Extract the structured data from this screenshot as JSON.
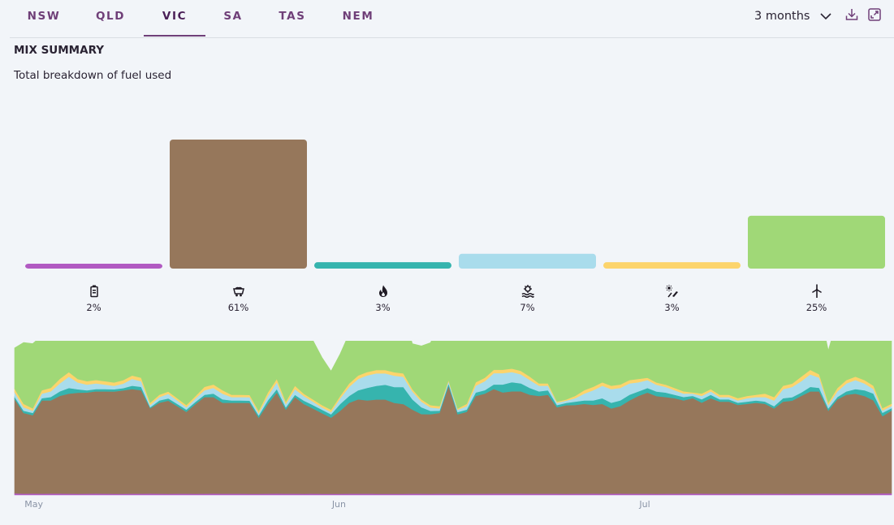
{
  "tabs": [
    {
      "label": "NSW",
      "active": false
    },
    {
      "label": "QLD",
      "active": false
    },
    {
      "label": "VIC",
      "active": true
    },
    {
      "label": "SA",
      "active": false
    },
    {
      "label": "TAS",
      "active": false
    },
    {
      "label": "NEM",
      "active": false
    }
  ],
  "toolbar": {
    "period_label": "3 months",
    "icons": [
      "chevron-down-icon",
      "download-icon",
      "expand-icon"
    ]
  },
  "summary": {
    "title": "MIX SUMMARY",
    "subtitle": "Total breakdown of fuel used"
  },
  "fuels": [
    {
      "key": "battery",
      "icon": "battery-icon",
      "percent_label": "2%",
      "color": "#b15ac2"
    },
    {
      "key": "coal",
      "icon": "coal-cart-icon",
      "percent_label": "61%",
      "color": "#96775b"
    },
    {
      "key": "gas",
      "icon": "flame-icon",
      "percent_label": "3%",
      "color": "#36b4ae"
    },
    {
      "key": "hydro",
      "icon": "hydro-icon",
      "percent_label": "7%",
      "color": "#a9dcec"
    },
    {
      "key": "solar",
      "icon": "solar-icon",
      "percent_label": "3%",
      "color": "#fcd46c"
    },
    {
      "key": "wind",
      "icon": "wind-turbine-icon",
      "percent_label": "25%",
      "color": "#a0d877"
    }
  ],
  "chart_data": [
    {
      "type": "bar",
      "categories": [
        "battery",
        "coal",
        "gas",
        "hydro",
        "solar",
        "wind"
      ],
      "values": [
        2,
        61,
        3,
        7,
        3,
        25
      ],
      "unit": "%",
      "title": "",
      "xlabel": "",
      "ylabel": "",
      "grid": false
    },
    {
      "type": "area",
      "stacked": true,
      "x_ticks": [
        "May",
        "Jun",
        "Jul"
      ],
      "x_tick_index": [
        2,
        36,
        70
      ],
      "grid": false,
      "series": [
        {
          "name": "battery",
          "color": "#b15ac2",
          "values": [
            1.5,
            1.2,
            1.3,
            1.2,
            1.3,
            1.3,
            1.2,
            1.1,
            1.2,
            1.3,
            1.2,
            1.1,
            1.1,
            1.2,
            1.2,
            1.3,
            1.2,
            1.1,
            1.2,
            1.2,
            1.1,
            1.2,
            1.3,
            1.2,
            1.2,
            1.2,
            1.1,
            1.1,
            1.2,
            1.3,
            1.2,
            1.2,
            1.1,
            1.2,
            1.1,
            1.1,
            1.1,
            1.2,
            1.2,
            1.3,
            1.1,
            1.1,
            1.1,
            1.1,
            1.2,
            1.2,
            1.1,
            1.2,
            1.2,
            1.1,
            1.2,
            1.2,
            1.2,
            1.3,
            1.3,
            1.3,
            1.3,
            1.2,
            1.2,
            1.2,
            1.2,
            1.1,
            1.2,
            1.2,
            1.3,
            1.2,
            1.2,
            1.3,
            1.2,
            1.2,
            1.2,
            1.1,
            1.2,
            1.2,
            1.3,
            1.3,
            1.3,
            1.2,
            1.2,
            1.2,
            1.3,
            1.2,
            1.2,
            1.3,
            1.2,
            1.2,
            1.1,
            1.2,
            1.2,
            1.3,
            1.3,
            1.2,
            1.2,
            1.2,
            1.2,
            1.3,
            1.4,
            1.4
          ]
        },
        {
          "name": "coal",
          "color": "#96775b",
          "values": [
            83,
            71,
            69,
            82,
            82,
            86,
            88,
            89,
            89,
            90,
            90,
            90,
            91,
            92,
            91,
            75,
            80,
            82,
            77,
            72,
            79,
            85,
            85,
            80,
            80,
            80,
            80,
            67,
            79,
            89,
            74,
            85,
            79,
            75,
            71,
            67,
            73,
            80,
            83,
            82,
            83,
            83,
            80,
            79,
            74,
            70,
            70,
            71,
            95,
            70,
            72,
            86,
            88,
            92,
            89,
            90,
            90,
            87,
            86,
            87,
            76,
            78,
            78,
            79,
            78,
            79,
            75,
            77,
            82,
            86,
            89,
            86,
            85,
            84,
            82,
            84,
            80,
            84,
            81,
            81,
            78,
            79,
            80,
            79,
            75,
            81,
            82,
            86,
            90,
            90,
            73,
            83,
            87,
            88,
            86,
            82,
            68,
            73
          ]
        },
        {
          "name": "gas",
          "color": "#36b4ae",
          "values": [
            2,
            2,
            2,
            2,
            3,
            4,
            5,
            3,
            2,
            2,
            2,
            2,
            2,
            3,
            3,
            1,
            2,
            2,
            2,
            2,
            2,
            2,
            3,
            3,
            2,
            2,
            2,
            2,
            3,
            3,
            2,
            2,
            3,
            3,
            3,
            3,
            6,
            6,
            8,
            11,
            12,
            13,
            14,
            15,
            9,
            6,
            3,
            2,
            2,
            2,
            2,
            3,
            3,
            4,
            7,
            8,
            7,
            6,
            4,
            4,
            2,
            2,
            3,
            3,
            4,
            5,
            5,
            5,
            5,
            4,
            4,
            4,
            4,
            3,
            3,
            2,
            3,
            3,
            2,
            2,
            2,
            2,
            2,
            2,
            2,
            3,
            3,
            3,
            4,
            3,
            2,
            2,
            3,
            4,
            5,
            6,
            3,
            2
          ]
        },
        {
          "name": "hydro",
          "color": "#a9dcec",
          "values": [
            4,
            3,
            2,
            4,
            5,
            7,
            10,
            6,
            5,
            5,
            4,
            3,
            4,
            6,
            5,
            2,
            3,
            4,
            3,
            2,
            3,
            4,
            5,
            5,
            3,
            3,
            3,
            2,
            4,
            6,
            3,
            5,
            4,
            3,
            2,
            2,
            5,
            8,
            10,
            11,
            11,
            10,
            10,
            9,
            7,
            5,
            3,
            2,
            2,
            2,
            3,
            6,
            8,
            10,
            10,
            9,
            8,
            7,
            5,
            4,
            2,
            2,
            3,
            6,
            9,
            11,
            12,
            11,
            10,
            8,
            7,
            6,
            5,
            4,
            3,
            2,
            3,
            3,
            2,
            2,
            2,
            3,
            3,
            4,
            5,
            8,
            9,
            10,
            11,
            9,
            3,
            5,
            7,
            8,
            6,
            4,
            2,
            2
          ]
        },
        {
          "name": "solar",
          "color": "#fcd46c",
          "values": [
            3,
            3,
            2,
            3,
            3,
            4,
            4,
            3,
            3,
            3,
            3,
            3,
            3,
            3,
            3,
            2,
            2,
            2,
            2,
            2,
            2,
            3,
            3,
            3,
            2,
            2,
            2,
            2,
            3,
            3,
            2,
            3,
            2,
            2,
            2,
            2,
            2,
            3,
            3,
            3,
            3,
            3,
            3,
            3,
            2,
            2,
            2,
            2,
            1,
            1,
            2,
            3,
            3,
            3,
            3,
            3,
            3,
            3,
            2,
            2,
            1,
            1,
            2,
            3,
            3,
            3,
            3,
            3,
            3,
            3,
            2,
            2,
            2,
            2,
            2,
            1,
            2,
            2,
            2,
            2,
            2,
            2,
            2,
            3,
            3,
            3,
            3,
            4,
            4,
            3,
            2,
            3,
            3,
            3,
            3,
            3,
            2,
            2
          ]
        },
        {
          "name": "wind",
          "color": "#a0d877",
          "values": [
            36,
            54,
            57,
            48,
            51,
            49,
            53,
            48,
            44,
            44,
            50,
            64,
            61,
            44,
            55,
            80,
            80,
            80,
            81,
            92,
            90,
            67,
            60,
            61,
            63,
            76,
            80,
            86,
            70,
            57,
            63,
            56,
            48,
            52,
            42,
            34,
            37,
            44,
            50,
            64,
            60,
            51,
            55,
            53,
            40,
            47,
            55,
            74,
            88,
            90,
            87,
            60,
            63,
            69,
            59,
            60,
            62,
            67,
            70,
            76,
            73,
            82,
            85,
            91,
            88,
            87,
            89,
            77,
            73,
            54,
            53,
            53,
            57,
            81,
            82,
            96,
            87,
            76,
            85,
            82,
            93,
            96,
            92,
            80,
            73,
            64,
            63,
            67,
            56,
            59,
            46,
            61,
            73,
            63,
            66,
            70,
            83,
            87
          ]
        }
      ]
    }
  ]
}
